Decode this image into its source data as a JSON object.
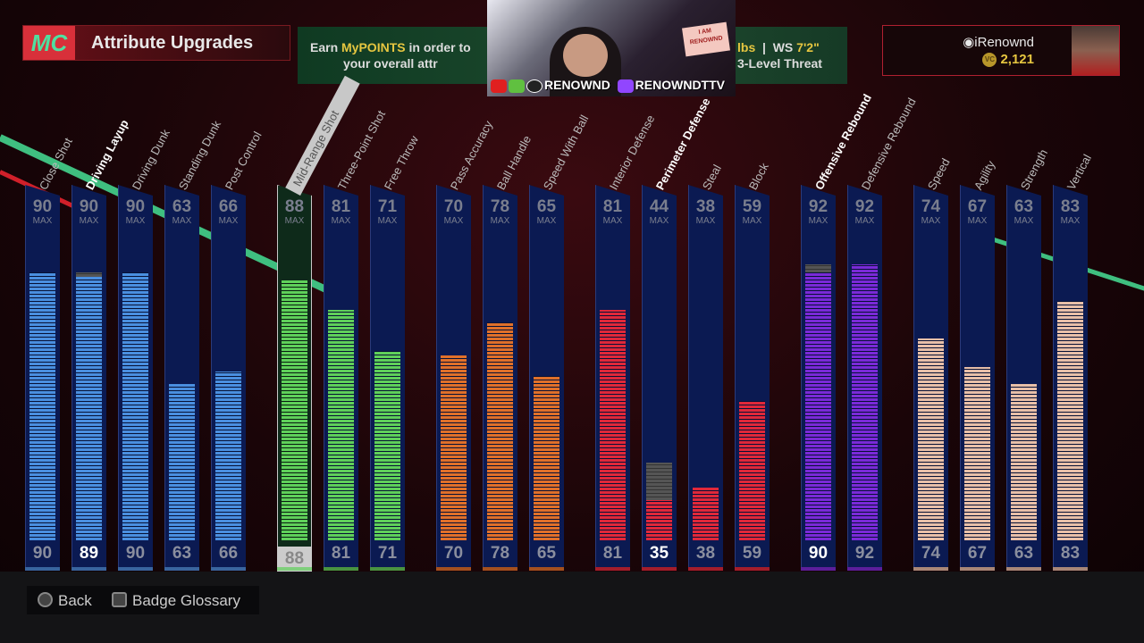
{
  "header": {
    "logo": "MC",
    "title": "Attribute Upgrades"
  },
  "info_banner": {
    "line1_prefix": "Earn ",
    "line1_highlight": "MyPOINTS",
    "line1_suffix": " in order to",
    "line2": "your overall attr",
    "weight_suffix": "lbs",
    "ws_label": "WS",
    "ws_value": "7'2\"",
    "archetype": "3-Level Threat"
  },
  "user": {
    "name": "iRenownd",
    "vc": "2,121",
    "vc_icon": "VC"
  },
  "webcam": {
    "sign": "I AM RENOWND",
    "social1": "RENOWND",
    "social2": "RENOWNDTTV"
  },
  "max_label": "MAX",
  "colors": {
    "inside": "#4a8fe0",
    "shooting": "#5fd05a",
    "playmaking": "#e0702a",
    "defense": "#e0283a",
    "rebounding": "#7a2ad8",
    "physicals": "#e8bfa8"
  },
  "attributes": [
    {
      "name": "Close Shot",
      "max": 90,
      "current": 90,
      "group": "inside"
    },
    {
      "name": "Driving Layup",
      "max": 90,
      "current": 89,
      "group": "inside",
      "highlight": true
    },
    {
      "name": "Driving Dunk",
      "max": 90,
      "current": 90,
      "group": "inside"
    },
    {
      "name": "Standing Dunk",
      "max": 63,
      "current": 63,
      "group": "inside"
    },
    {
      "name": "Post Control",
      "max": 66,
      "current": 66,
      "group": "inside"
    },
    {
      "name": "Mid-Range Shot",
      "max": 88,
      "current": 88,
      "group": "shooting",
      "selected": true
    },
    {
      "name": "Three-Point Shot",
      "max": 81,
      "current": 81,
      "group": "shooting"
    },
    {
      "name": "Free Throw",
      "max": 71,
      "current": 71,
      "group": "shooting"
    },
    {
      "name": "Pass Accuracy",
      "max": 70,
      "current": 70,
      "group": "playmaking"
    },
    {
      "name": "Ball Handle",
      "max": 78,
      "current": 78,
      "group": "playmaking"
    },
    {
      "name": "Speed With Ball",
      "max": 65,
      "current": 65,
      "group": "playmaking"
    },
    {
      "name": "Interior Defense",
      "max": 81,
      "current": 81,
      "group": "defense"
    },
    {
      "name": "Perimeter Defense",
      "max": 44,
      "current": 35,
      "group": "defense",
      "highlight": true
    },
    {
      "name": "Steal",
      "max": 38,
      "current": 38,
      "group": "defense"
    },
    {
      "name": "Block",
      "max": 59,
      "current": 59,
      "group": "defense"
    },
    {
      "name": "Offensive Rebound",
      "max": 92,
      "current": 90,
      "group": "rebounding",
      "highlight": true
    },
    {
      "name": "Defensive Rebound",
      "max": 92,
      "current": 92,
      "group": "rebounding"
    },
    {
      "name": "Speed",
      "max": 74,
      "current": 74,
      "group": "physicals"
    },
    {
      "name": "Agility",
      "max": 67,
      "current": 67,
      "group": "physicals"
    },
    {
      "name": "Strength",
      "max": 63,
      "current": 63,
      "group": "physicals"
    },
    {
      "name": "Vertical",
      "max": 83,
      "current": 83,
      "group": "physicals"
    }
  ],
  "footer": {
    "back": "Back",
    "glossary": "Badge Glossary"
  }
}
